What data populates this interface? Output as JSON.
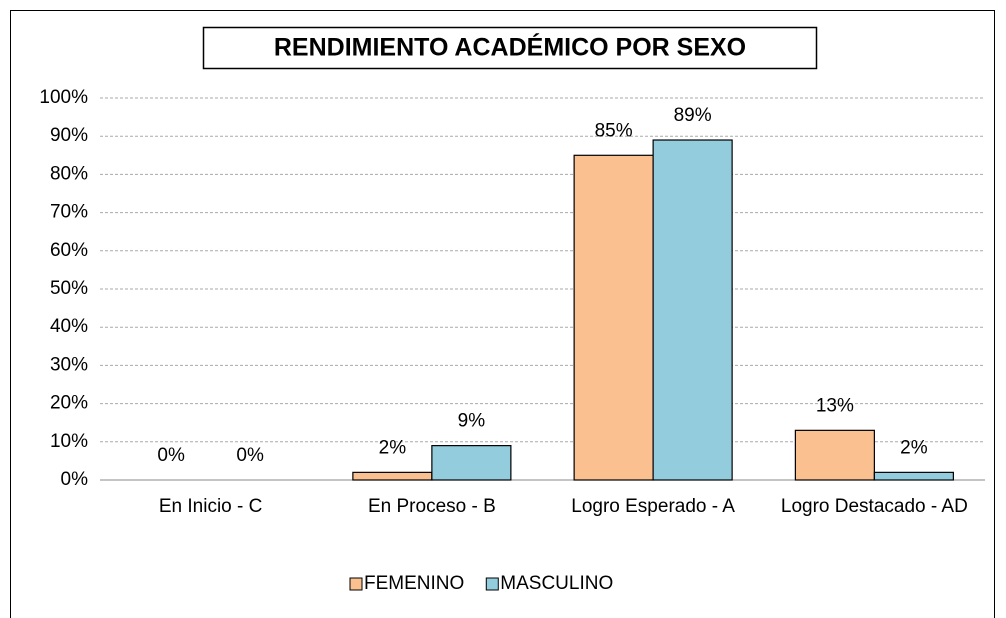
{
  "chart_data": {
    "type": "bar",
    "title": "RENDIMIENTO ACADÉMICO POR SEXO",
    "categories": [
      "En Inicio - C",
      "En Proceso - B",
      "Logro Esperado - A",
      "Logro Destacado - AD"
    ],
    "series": [
      {
        "name": "FEMENINO",
        "color": "#fac090",
        "values": [
          0,
          2,
          85,
          13
        ],
        "value_labels": [
          "0%",
          "2%",
          "85%",
          "13%"
        ]
      },
      {
        "name": "MASCULINO",
        "color": "#93cddd",
        "values": [
          0,
          9,
          89,
          2
        ],
        "value_labels": [
          "0%",
          "9%",
          "89%",
          "2%"
        ]
      }
    ],
    "ylim": [
      0,
      100
    ],
    "yticks": [
      {
        "value": 0,
        "label": "0%"
      },
      {
        "value": 10,
        "label": "10%"
      },
      {
        "value": 20,
        "label": "20%"
      },
      {
        "value": 30,
        "label": "30%"
      },
      {
        "value": 40,
        "label": "40%"
      },
      {
        "value": 50,
        "label": "50%"
      },
      {
        "value": 60,
        "label": "60%"
      },
      {
        "value": 70,
        "label": "70%"
      },
      {
        "value": 80,
        "label": "80%"
      },
      {
        "value": 90,
        "label": "90%"
      },
      {
        "value": 100,
        "label": "100%"
      }
    ],
    "grid": true,
    "legend": "bottom"
  }
}
